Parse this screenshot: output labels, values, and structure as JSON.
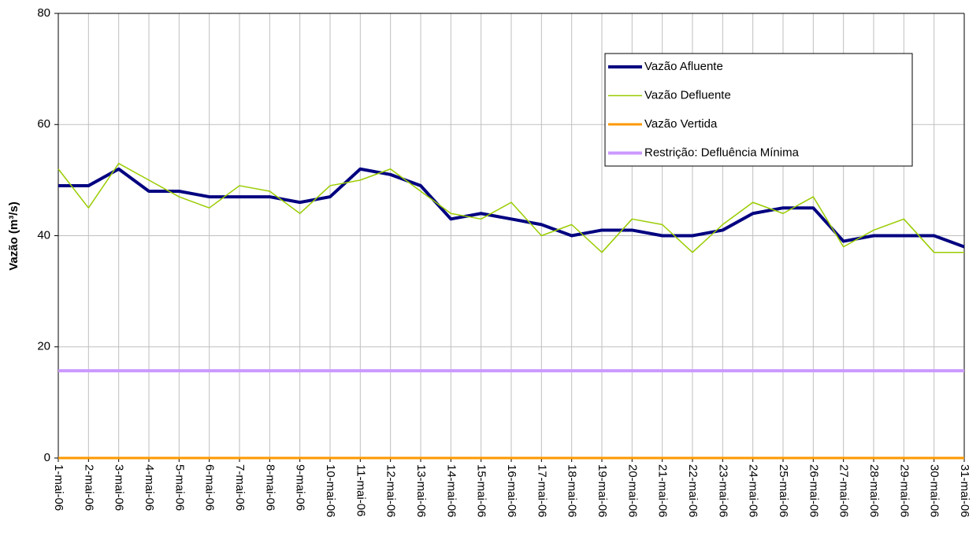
{
  "chart_data": {
    "type": "line",
    "ylabel": "Vazão (m³/s)",
    "categories": [
      "1-mai-06",
      "2-mai-06",
      "3-mai-06",
      "4-mai-06",
      "5-mai-06",
      "6-mai-06",
      "7-mai-06",
      "8-mai-06",
      "9-mai-06",
      "10-mai-06",
      "11-mai-06",
      "12-mai-06",
      "13-mai-06",
      "14-mai-06",
      "15-mai-06",
      "16-mai-06",
      "17-mai-06",
      "18-mai-06",
      "19-mai-06",
      "20-mai-06",
      "21-mai-06",
      "22-mai-06",
      "23-mai-06",
      "24-mai-06",
      "25-mai-06",
      "26-mai-06",
      "27-mai-06",
      "28-mai-06",
      "29-mai-06",
      "30-mai-06",
      "31-mai-06"
    ],
    "series": [
      {
        "name": "Vazão Afluente",
        "color": "#000080",
        "width": 4,
        "values": [
          49,
          49,
          52,
          48,
          48,
          47,
          47,
          47,
          46,
          47,
          52,
          51,
          49,
          43,
          44,
          43,
          42,
          40,
          41,
          41,
          40,
          40,
          41,
          44,
          45,
          45,
          39,
          40,
          40,
          40,
          38
        ]
      },
      {
        "name": "Vazão Defluente",
        "color": "#99cc00",
        "width": 1.5,
        "values": [
          52,
          45,
          53,
          50,
          47,
          45,
          49,
          48,
          44,
          49,
          50,
          52,
          48,
          44,
          43,
          46,
          40,
          42,
          37,
          43,
          42,
          37,
          42,
          46,
          44,
          47,
          38,
          41,
          43,
          37,
          37
        ]
      },
      {
        "name": "Vazão Vertida",
        "color": "#ff9900",
        "width": 3,
        "values": [
          0,
          0,
          0,
          0,
          0,
          0,
          0,
          0,
          0,
          0,
          0,
          0,
          0,
          0,
          0,
          0,
          0,
          0,
          0,
          0,
          0,
          0,
          0,
          0,
          0,
          0,
          0,
          0,
          0,
          0,
          0
        ]
      },
      {
        "name": "Restrição: Defluência Mínima",
        "color": "#cc99ff",
        "width": 4,
        "values": [
          15.7,
          15.7,
          15.7,
          15.7,
          15.7,
          15.7,
          15.7,
          15.7,
          15.7,
          15.7,
          15.7,
          15.7,
          15.7,
          15.7,
          15.7,
          15.7,
          15.7,
          15.7,
          15.7,
          15.7,
          15.7,
          15.7,
          15.7,
          15.7,
          15.7,
          15.7,
          15.7,
          15.7,
          15.7,
          15.7,
          15.7
        ]
      }
    ],
    "ylim": [
      0,
      80
    ],
    "yticks": [
      0,
      20,
      40,
      60,
      80
    ],
    "grid": true,
    "legend": "upper right"
  }
}
